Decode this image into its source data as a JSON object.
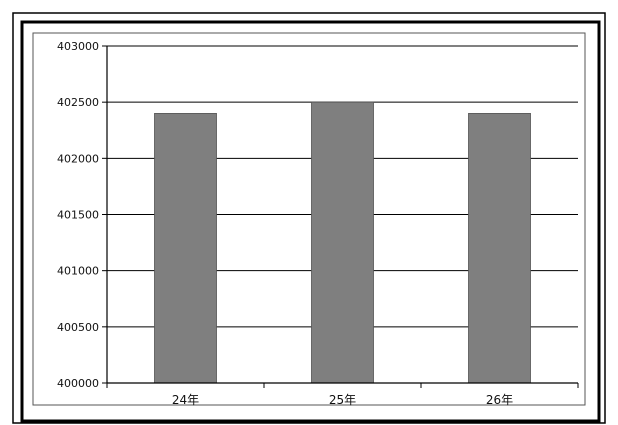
{
  "chart_data": {
    "type": "bar",
    "categories": [
      "24年",
      "25年",
      "26年"
    ],
    "values": [
      402400,
      402500,
      402400
    ],
    "ylim": [
      400000,
      403000
    ],
    "yticks": [
      400000,
      400500,
      401000,
      401500,
      402000,
      402500,
      403000
    ],
    "ytick_labels": [
      "400000",
      "400500",
      "401000",
      "401500",
      "402000",
      "402500",
      "403000"
    ],
    "grid": true,
    "legend": "none",
    "colors": {
      "bar": "#7f7f7f",
      "grid": "#000000",
      "frame": "#000000"
    }
  }
}
